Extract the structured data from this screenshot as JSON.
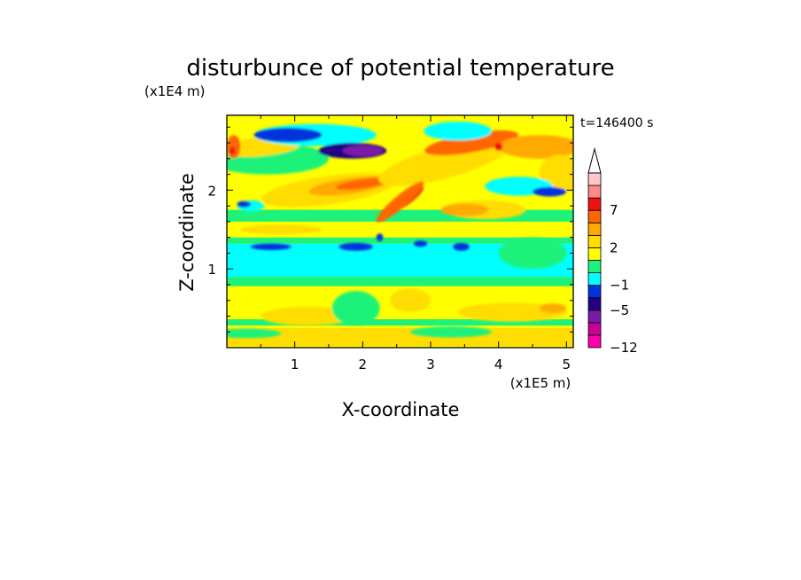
{
  "chart_data": {
    "type": "heatmap",
    "title": "disturbunce of potential temperature",
    "xlabel": "X-coordinate",
    "ylabel": "Z-coordinate",
    "x_unit": "(x1E5 m)",
    "y_unit": "(x1E4 m)",
    "time_label": "t=146400 s",
    "xlim": [
      0,
      5.1
    ],
    "ylim": [
      0,
      2.95
    ],
    "x_ticks": [
      1,
      2,
      3,
      4,
      5
    ],
    "y_ticks": [
      1,
      2
    ],
    "grid": false,
    "levels": [
      -12,
      -9,
      -7,
      -5,
      -3,
      -1,
      0,
      1,
      2,
      3,
      5,
      7,
      9,
      11
    ],
    "level_colors": [
      "#ff00aa",
      "#cc0099",
      "#7a1aa8",
      "#220088",
      "#0033dd",
      "#00ffff",
      "#1ff27a",
      "#ffff00",
      "#ffdd00",
      "#ffaa00",
      "#ff6600",
      "#ee1111",
      "#ff8888",
      "#ffc8c8"
    ],
    "colorbar_labels": [
      {
        "value": 7,
        "text": "7"
      },
      {
        "value": 2,
        "text": "2"
      },
      {
        "value": -1,
        "text": "−1"
      },
      {
        "value": -5,
        "text": "−5"
      },
      {
        "value": -12,
        "text": "−12"
      }
    ],
    "colorbar_extends_max": true
  }
}
